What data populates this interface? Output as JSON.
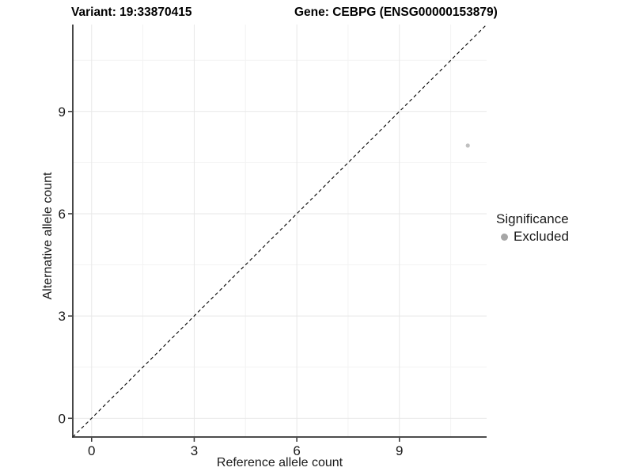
{
  "header": {
    "variant_title": "Variant: 19:33870415",
    "gene_title": "Gene: CEBPG (ENSG00000153879)"
  },
  "chart_data": {
    "type": "scatter",
    "x": {
      "label": "Reference allele count",
      "ticks": [
        0,
        3,
        6,
        9
      ],
      "minor_ticks": [
        1.5,
        4.5,
        7.5,
        10.5
      ],
      "range": [
        -0.55,
        11.55
      ]
    },
    "y": {
      "label": "Alternative allele count",
      "ticks": [
        0,
        3,
        6,
        9
      ],
      "minor_ticks": [
        1.5,
        4.5,
        7.5,
        10.5
      ],
      "range": [
        -0.55,
        11.55
      ]
    },
    "points": [
      {
        "x": 11,
        "y": 8,
        "series": "Excluded"
      }
    ],
    "reference_line": {
      "type": "identity",
      "slope": 1,
      "intercept": 0,
      "style": "dashed",
      "color": "#000000"
    },
    "legend": {
      "title": "Significance",
      "position": "right",
      "items": [
        {
          "label": "Excluded",
          "color": "#a6a6a6"
        }
      ]
    },
    "grid": true,
    "colors": {
      "background": "#ffffff",
      "grid_major": "#e7e7e7",
      "grid_minor": "#f3f3f3",
      "axis_line": "#333333",
      "point": "#c0c0c0",
      "text": "#1a1a1a"
    }
  }
}
